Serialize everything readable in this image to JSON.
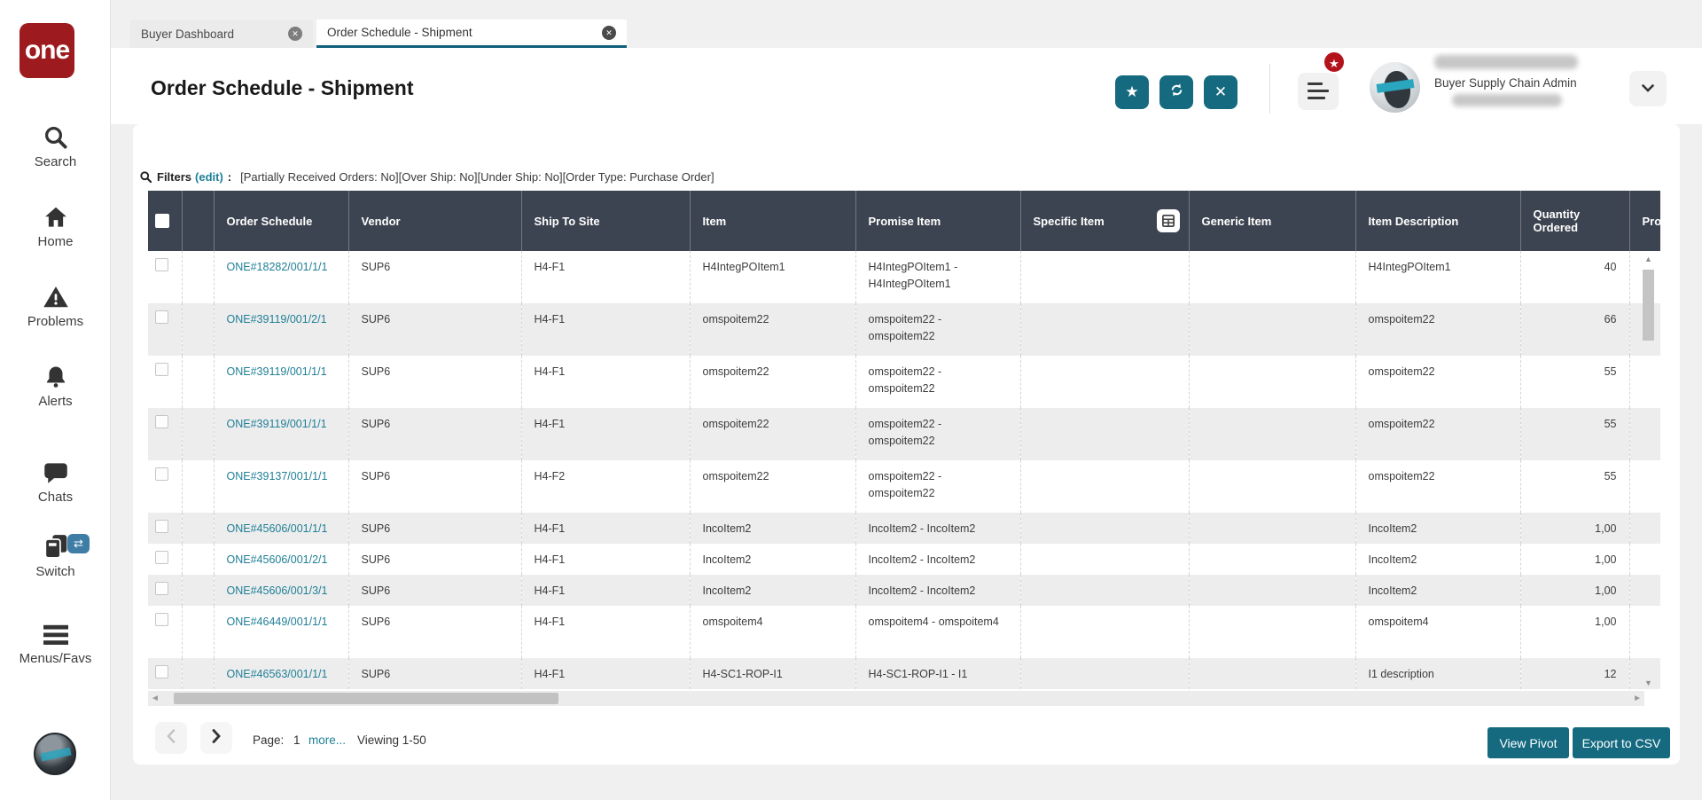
{
  "app": {
    "logo_text": "one"
  },
  "colors": {
    "accent_teal": "#156a80",
    "link_teal": "#1f7f96",
    "table_header_slate": "#3d4451",
    "logo_red": "#9d1b1f",
    "badge_red": "#b3131a"
  },
  "sidebar": {
    "items": [
      {
        "icon": "search-icon",
        "label": "Search"
      },
      {
        "icon": "home-icon",
        "label": "Home"
      },
      {
        "icon": "warning-triangle-icon",
        "label": "Problems"
      },
      {
        "icon": "bell-icon",
        "label": "Alerts"
      },
      {
        "icon": "chat-bubble-icon",
        "label": "Chats"
      },
      {
        "icon": "switch-books-icon",
        "label": "Switch",
        "badge_icon": "swap-arrows-icon",
        "badge_glyph": "⇄"
      },
      {
        "icon": "hamburger-icon",
        "label": "Menus/Favs"
      }
    ]
  },
  "tabs": [
    {
      "label": "Buyer Dashboard",
      "active": false,
      "close_icon": "close-icon"
    },
    {
      "label": "Order Schedule - Shipment",
      "active": true,
      "close_icon": "close-icon"
    }
  ],
  "header": {
    "title": "Order Schedule - Shipment",
    "actions": [
      {
        "icon": "star-icon",
        "glyph": "★"
      },
      {
        "icon": "refresh-icon"
      },
      {
        "icon": "close-icon",
        "glyph": "✕"
      }
    ],
    "menu_badge_icon": "star-icon",
    "menu_badge_glyph": "★",
    "user": {
      "role": "Buyer Supply Chain Admin"
    }
  },
  "filters": {
    "search_icon": "search-icon",
    "label": "Filters",
    "edit_link": "(edit)",
    "colon": ":",
    "criteria": "[Partially Received Orders: No][Over Ship: No][Under Ship: No][Order Type: Purchase Order]"
  },
  "table": {
    "columns": [
      "",
      "",
      "Order Schedule",
      "Vendor",
      "Ship To Site",
      "Item",
      "Promise Item",
      "Specific Item",
      "Generic Item",
      "Item Description",
      "Quantity Ordered",
      "Pro"
    ],
    "specific_item_picker_icon": "grid-table-icon",
    "rows": [
      {
        "order_schedule": "ONE#18282/001/1/1",
        "vendor": "SUP6",
        "ship_to_site": "H4-F1",
        "item": "H4IntegPOItem1",
        "promise_item": "H4IntegPOItem1 - H4IntegPOItem1",
        "specific_item": "",
        "generic_item": "",
        "item_description": "H4IntegPOItem1",
        "quantity_ordered": "40",
        "pro": ""
      },
      {
        "order_schedule": "ONE#39119/001/2/1",
        "vendor": "SUP6",
        "ship_to_site": "H4-F1",
        "item": "omspoitem22",
        "promise_item": "omspoitem22 - omspoitem22",
        "specific_item": "",
        "generic_item": "",
        "item_description": "omspoitem22",
        "quantity_ordered": "66",
        "pro": ""
      },
      {
        "order_schedule": "ONE#39119/001/1/1",
        "vendor": "SUP6",
        "ship_to_site": "H4-F1",
        "item": "omspoitem22",
        "promise_item": "omspoitem22 - omspoitem22",
        "specific_item": "",
        "generic_item": "",
        "item_description": "omspoitem22",
        "quantity_ordered": "55",
        "pro": ""
      },
      {
        "order_schedule": "ONE#39119/001/1/1",
        "vendor": "SUP6",
        "ship_to_site": "H4-F1",
        "item": "omspoitem22",
        "promise_item": "omspoitem22 - omspoitem22",
        "specific_item": "",
        "generic_item": "",
        "item_description": "omspoitem22",
        "quantity_ordered": "55",
        "pro": ""
      },
      {
        "order_schedule": "ONE#39137/001/1/1",
        "vendor": "SUP6",
        "ship_to_site": "H4-F2",
        "item": "omspoitem22",
        "promise_item": "omspoitem22 - omspoitem22",
        "specific_item": "",
        "generic_item": "",
        "item_description": "omspoitem22",
        "quantity_ordered": "55",
        "pro": ""
      },
      {
        "order_schedule": "ONE#45606/001/1/1",
        "vendor": "SUP6",
        "ship_to_site": "H4-F1",
        "item": "IncoItem2",
        "promise_item": "IncoItem2 - IncoItem2",
        "specific_item": "",
        "generic_item": "",
        "item_description": "IncoItem2",
        "quantity_ordered": "1,00",
        "pro": ""
      },
      {
        "order_schedule": "ONE#45606/001/2/1",
        "vendor": "SUP6",
        "ship_to_site": "H4-F1",
        "item": "IncoItem2",
        "promise_item": "IncoItem2 - IncoItem2",
        "specific_item": "",
        "generic_item": "",
        "item_description": "IncoItem2",
        "quantity_ordered": "1,00",
        "pro": ""
      },
      {
        "order_schedule": "ONE#45606/001/3/1",
        "vendor": "SUP6",
        "ship_to_site": "H4-F1",
        "item": "IncoItem2",
        "promise_item": "IncoItem2 - IncoItem2",
        "specific_item": "",
        "generic_item": "",
        "item_description": "IncoItem2",
        "quantity_ordered": "1,00",
        "pro": ""
      },
      {
        "order_schedule": "ONE#46449/001/1/1",
        "vendor": "SUP6",
        "ship_to_site": "H4-F1",
        "item": "omspoitem4",
        "promise_item": "omspoitem4 - omspoitem4",
        "specific_item": "",
        "generic_item": "",
        "item_description": "omspoitem4",
        "quantity_ordered": "1,00",
        "pro": ""
      },
      {
        "order_schedule": "ONE#46563/001/1/1",
        "vendor": "SUP6",
        "ship_to_site": "H4-F1",
        "item": "H4-SC1-ROP-I1",
        "promise_item": "H4-SC1-ROP-I1 - I1",
        "specific_item": "",
        "generic_item": "",
        "item_description": "I1 description",
        "quantity_ordered": "12",
        "pro": ""
      }
    ]
  },
  "footer": {
    "prev_icon": "chevron-left-icon",
    "next_icon": "chevron-right-icon",
    "page_label": "Page:",
    "page_value": "1",
    "more_link": "more...",
    "viewing": "Viewing 1-50",
    "view_pivot": "View Pivot",
    "export_csv": "Export to CSV"
  }
}
